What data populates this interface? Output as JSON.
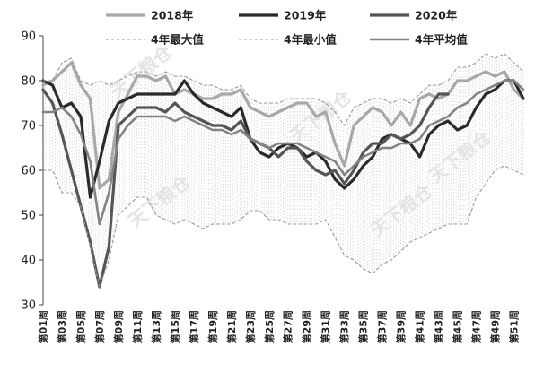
{
  "chart_data": {
    "type": "line",
    "ylim": [
      30,
      90
    ],
    "yticks": [
      30,
      40,
      50,
      60,
      70,
      80,
      90
    ],
    "grid": false,
    "legend_position": "top",
    "x": [
      "第01周",
      "第02周",
      "第03周",
      "第04周",
      "第05周",
      "第06周",
      "第07周",
      "第08周",
      "第09周",
      "第10周",
      "第11周",
      "第12周",
      "第13周",
      "第14周",
      "第15周",
      "第16周",
      "第17周",
      "第18周",
      "第19周",
      "第20周",
      "第21周",
      "第22周",
      "第23周",
      "第24周",
      "第25周",
      "第26周",
      "第27周",
      "第28周",
      "第29周",
      "第30周",
      "第31周",
      "第32周",
      "第33周",
      "第34周",
      "第35周",
      "第36周",
      "第37周",
      "第38周",
      "第39周",
      "第40周",
      "第41周",
      "第42周",
      "第43周",
      "第44周",
      "第45周",
      "第46周",
      "第47周",
      "第48周",
      "第49周",
      "第50周",
      "第51周",
      "第52周"
    ],
    "x_tick_labels": [
      "第01周",
      "第03周",
      "第05周",
      "第07周",
      "第09周",
      "第11周",
      "第13周",
      "第15周",
      "第17周",
      "第19周",
      "第21周",
      "第23周",
      "第25周",
      "第27周",
      "第29周",
      "第31周",
      "第33周",
      "第35周",
      "第37周",
      "第39周",
      "第41周",
      "第43周",
      "第45周",
      "第47周",
      "第49周",
      "第51周"
    ],
    "series": [
      {
        "name": "2018年",
        "color": "#a8a8a8",
        "width": 3.2,
        "dash": "",
        "values": [
          79,
          80,
          82,
          84,
          79,
          76,
          56,
          58,
          73,
          77,
          81,
          81,
          80,
          81,
          77,
          78,
          77,
          76,
          76,
          77,
          77,
          78,
          74,
          73,
          72,
          73,
          74,
          75,
          75,
          72,
          73,
          66,
          61,
          70,
          72,
          74,
          73,
          70,
          73,
          70,
          76,
          77,
          76,
          77,
          80,
          80,
          81,
          82,
          81,
          82,
          78,
          76
        ]
      },
      {
        "name": "2019年",
        "color": "#2a2a2a",
        "width": 3.2,
        "dash": "",
        "values": [
          80,
          79,
          74,
          75,
          72,
          54,
          62,
          71,
          75,
          76,
          77,
          77,
          77,
          77,
          77,
          80,
          77,
          75,
          74,
          73,
          72,
          74,
          67,
          64,
          63,
          65,
          66,
          65,
          63,
          64,
          62,
          58,
          56,
          58,
          61,
          63,
          67,
          68,
          67,
          66,
          63,
          68,
          70,
          71,
          69,
          70,
          74,
          77,
          78,
          80,
          80,
          76
        ]
      },
      {
        "name": "2020年",
        "color": "#555555",
        "width": 3.2,
        "dash": "",
        "values": [
          78,
          75,
          68,
          60,
          52,
          44,
          34,
          43,
          70,
          72,
          74,
          74,
          74,
          73,
          75,
          73,
          72,
          71,
          70,
          70,
          69,
          71,
          67,
          66,
          65,
          63,
          65,
          65,
          62,
          60,
          59,
          60,
          57,
          60,
          64,
          66,
          66,
          68,
          67,
          68,
          70,
          74,
          77,
          77,
          null,
          null,
          null,
          null,
          null,
          null,
          null,
          null
        ]
      },
      {
        "name": "4年最大值",
        "color": "#9a9a9a",
        "width": 1.1,
        "dash": "3,3",
        "values": [
          80,
          80,
          84,
          85,
          80,
          79,
          80,
          79,
          80,
          81,
          82,
          82,
          81,
          82,
          81,
          81,
          80,
          79,
          79,
          78,
          78,
          79,
          76,
          75,
          75,
          75,
          76,
          76,
          76,
          76,
          75,
          73,
          70,
          74,
          75,
          76,
          76,
          75,
          76,
          75,
          77,
          79,
          79,
          80,
          83,
          83,
          84,
          86,
          85,
          86,
          84,
          82
        ]
      },
      {
        "name": "4年最小值",
        "color": "#9a9a9a",
        "width": 1.1,
        "dash": "3,3",
        "values": [
          60,
          60,
          55,
          55,
          52,
          43,
          34,
          40,
          50,
          52,
          54,
          54,
          50,
          49,
          48,
          49,
          48,
          47,
          48,
          48,
          48,
          49,
          51,
          51,
          49,
          49,
          48,
          48,
          48,
          48,
          49,
          45,
          41,
          40,
          38,
          37,
          39,
          40,
          42,
          44,
          45,
          46,
          47,
          48,
          48,
          48,
          54,
          57,
          60,
          61,
          60,
          59
        ]
      },
      {
        "name": "4年平均值",
        "color": "#838383",
        "width": 2.6,
        "dash": "",
        "values": [
          73,
          73,
          74,
          72,
          68,
          62,
          48,
          55,
          67,
          70,
          72,
          72,
          72,
          72,
          71,
          72,
          71,
          70,
          69,
          69,
          68,
          69,
          67,
          66,
          65,
          66,
          66,
          66,
          65,
          64,
          63,
          62,
          59,
          61,
          63,
          64,
          65,
          65,
          66,
          66,
          67,
          70,
          71,
          72,
          74,
          75,
          77,
          78,
          79,
          80,
          80,
          78
        ]
      }
    ]
  },
  "watermarks": [
    "天下粮仓",
    "天下粮仓",
    "天下粮仓",
    "天下粮仓",
    "天下粮仓"
  ]
}
